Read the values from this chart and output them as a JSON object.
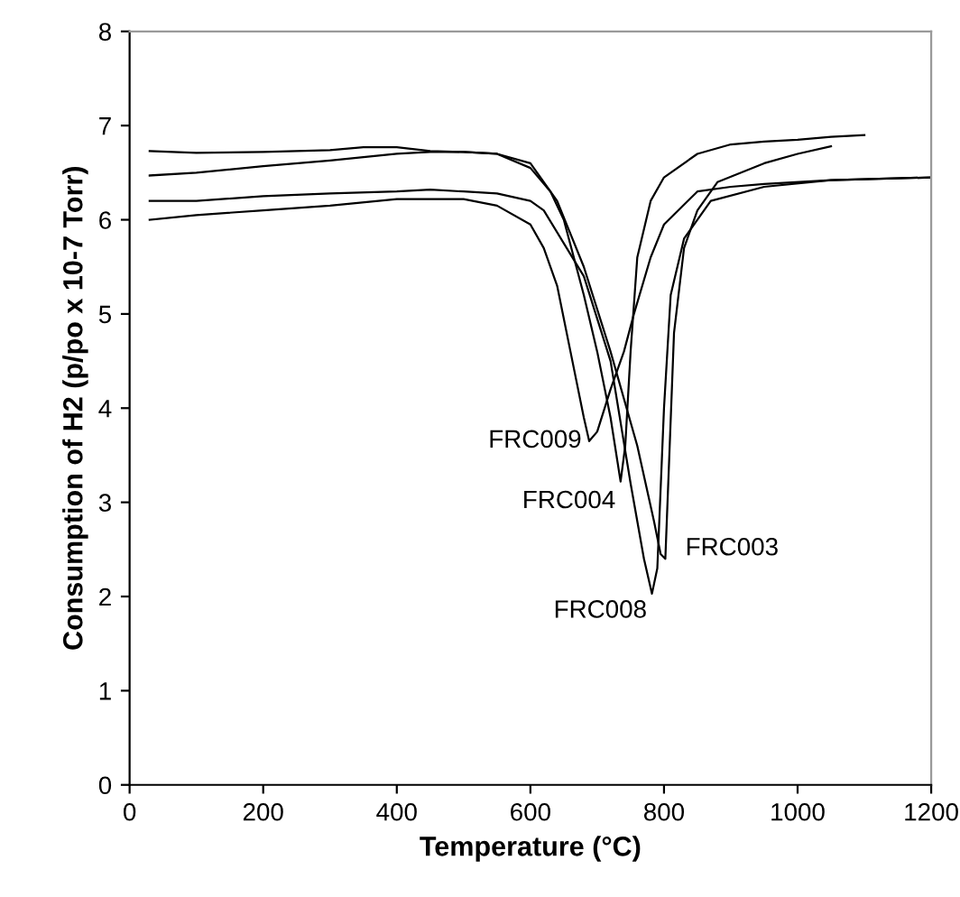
{
  "chart_data": {
    "type": "line",
    "xlabel": "Temperature (°C)",
    "ylabel": "Consumption of H2 (p/po x 10-7 Torr)",
    "xlim": [
      0,
      1200
    ],
    "ylim": [
      0,
      8
    ],
    "xticks": [
      0,
      200,
      400,
      600,
      800,
      1000,
      1200
    ],
    "yticks": [
      0,
      1,
      2,
      3,
      4,
      5,
      6,
      7,
      8
    ],
    "grid": false,
    "legend": false,
    "marker": "none",
    "line_style": "solid",
    "series": [
      {
        "name": "FRC009",
        "color": "#000000",
        "x": [
          30,
          100,
          200,
          300,
          400,
          500,
          550,
          600,
          620,
          640,
          660,
          680,
          688,
          700,
          720,
          740,
          755,
          780,
          800,
          850,
          900,
          950,
          1050,
          1200
        ],
        "values": [
          6.0,
          6.05,
          6.1,
          6.15,
          6.22,
          6.22,
          6.15,
          5.95,
          5.7,
          5.3,
          4.6,
          3.9,
          3.65,
          3.75,
          4.2,
          4.6,
          5.0,
          5.6,
          5.95,
          6.3,
          6.35,
          6.38,
          6.42,
          6.45
        ]
      },
      {
        "name": "FRC004",
        "color": "#000000",
        "x": [
          30,
          100,
          200,
          300,
          350,
          400,
          450,
          500,
          550,
          600,
          630,
          650,
          680,
          700,
          720,
          735,
          742,
          750,
          760,
          780,
          800,
          850,
          900,
          950,
          1000,
          1050,
          1100
        ],
        "values": [
          6.73,
          6.71,
          6.72,
          6.74,
          6.77,
          6.77,
          6.73,
          6.72,
          6.7,
          6.55,
          6.3,
          6.0,
          5.2,
          4.6,
          3.9,
          3.22,
          3.6,
          4.6,
          5.6,
          6.2,
          6.45,
          6.7,
          6.8,
          6.83,
          6.85,
          6.88,
          6.9
        ]
      },
      {
        "name": "FRC003",
        "color": "#000000",
        "x": [
          30,
          100,
          200,
          300,
          400,
          450,
          500,
          550,
          600,
          640,
          680,
          720,
          760,
          785,
          795,
          802,
          808,
          815,
          830,
          850,
          880,
          950,
          1000,
          1050
        ],
        "values": [
          6.47,
          6.5,
          6.57,
          6.63,
          6.7,
          6.72,
          6.72,
          6.7,
          6.6,
          6.2,
          5.5,
          4.6,
          3.6,
          2.8,
          2.45,
          2.4,
          3.5,
          4.8,
          5.7,
          6.1,
          6.4,
          6.6,
          6.7,
          6.78
        ]
      },
      {
        "name": "FRC008",
        "color": "#000000",
        "x": [
          30,
          100,
          200,
          300,
          400,
          450,
          500,
          550,
          600,
          620,
          680,
          720,
          750,
          770,
          782,
          790,
          800,
          810,
          830,
          870,
          950,
          1050,
          1200
        ],
        "values": [
          6.2,
          6.2,
          6.25,
          6.28,
          6.3,
          6.32,
          6.3,
          6.28,
          6.2,
          6.1,
          5.4,
          4.5,
          3.2,
          2.4,
          2.03,
          2.3,
          4.0,
          5.2,
          5.8,
          6.2,
          6.35,
          6.42,
          6.45
        ]
      }
    ]
  }
}
